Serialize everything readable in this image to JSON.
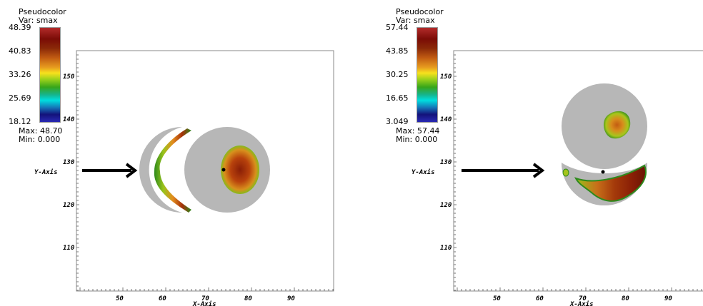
{
  "panels": [
    {
      "legend": {
        "title": "Pseudocolor",
        "var": "Var: smax",
        "ticks": [
          "48.39",
          "40.83",
          "33.26",
          "25.69",
          "18.12"
        ],
        "max": "Max: 48.70",
        "min": "Min: 0.000"
      },
      "x_axis": {
        "title": "X-Axis",
        "ticks": [
          "50",
          "60",
          "70",
          "80",
          "90"
        ]
      },
      "y_axis": {
        "title": "Y-Axis",
        "ticks": [
          "150",
          "140",
          "130",
          "120",
          "110"
        ]
      }
    },
    {
      "legend": {
        "title": "Pseudocolor",
        "var": "Var: smax",
        "ticks": [
          "57.44",
          "43.85",
          "30.25",
          "16.65",
          "3.049"
        ],
        "max": "Max: 57.44",
        "min": "Min: 0.000"
      },
      "x_axis": {
        "title": "X-Axis",
        "ticks": [
          "50",
          "60",
          "70",
          "80",
          "90"
        ]
      },
      "y_axis": {
        "title": "Y-Axis",
        "ticks": [
          "150",
          "140",
          "130",
          "120",
          "110"
        ]
      }
    }
  ],
  "colors": {
    "disk_gray": "#b7b7b7",
    "hot_core": "#8a1f06",
    "warm": "#d4681a",
    "cool_edge": "#2d8a1c",
    "arrow": "#000000"
  }
}
